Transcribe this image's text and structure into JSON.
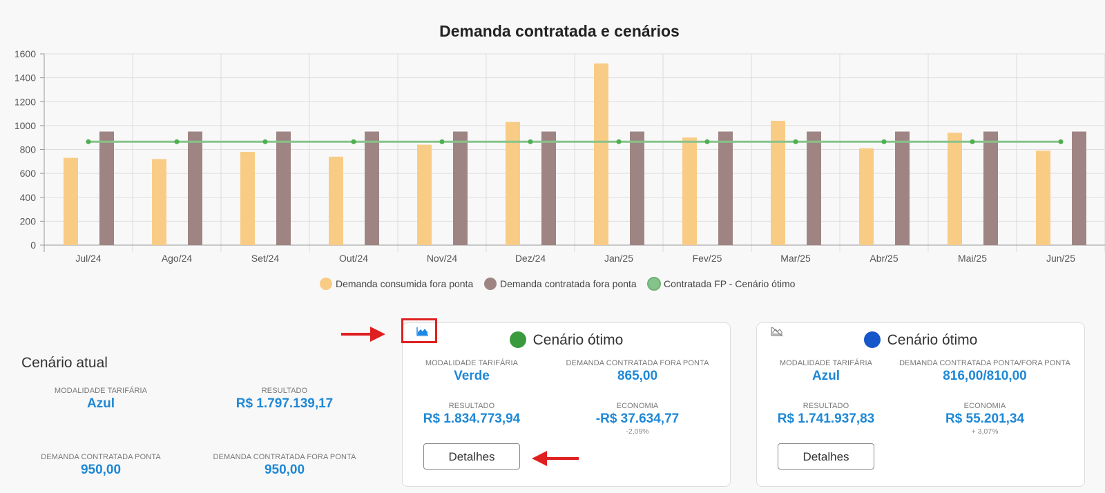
{
  "chart_data": {
    "type": "bar",
    "title": "Demanda contratada e cenários",
    "categories": [
      "Jul/24",
      "Ago/24",
      "Set/24",
      "Out/24",
      "Nov/24",
      "Dez/24",
      "Jan/25",
      "Fev/25",
      "Mar/25",
      "Abr/25",
      "Mai/25",
      "Jun/25"
    ],
    "ylim": [
      0,
      1600
    ],
    "yticks": [
      0,
      200,
      400,
      600,
      800,
      1000,
      1200,
      1400,
      1600
    ],
    "grid": true,
    "legend_position": "bottom-center",
    "series": [
      {
        "name": "Demanda consumida fora ponta",
        "kind": "bar",
        "color": "#f9cc86",
        "values": [
          730,
          720,
          780,
          740,
          840,
          1030,
          1520,
          900,
          1040,
          810,
          940,
          790
        ]
      },
      {
        "name": "Demanda contratada fora ponta",
        "kind": "bar",
        "color": "#9e8583",
        "values": [
          950,
          950,
          950,
          950,
          950,
          950,
          950,
          950,
          950,
          950,
          950,
          950
        ]
      },
      {
        "name": "Contratada FP - Cenário ótimo",
        "kind": "line",
        "color": "#86c38a",
        "values": [
          865,
          865,
          865,
          865,
          865,
          865,
          865,
          865,
          865,
          865,
          865,
          865
        ]
      }
    ]
  },
  "current": {
    "title": "Cenário atual",
    "modalidade_label": "MODALIDADE TARIFÁRIA",
    "modalidade_value": "Azul",
    "resultado_label": "RESULTADO",
    "resultado_value": "R$ 1.797.139,17",
    "ponta_label": "DEMANDA CONTRATADA PONTA",
    "ponta_value": "950,00",
    "fora_ponta_label": "DEMANDA CONTRATADA FORA PONTA",
    "fora_ponta_value": "950,00"
  },
  "cards": [
    {
      "title": "Cenário ótimo",
      "dot_color": "#3a9a3e",
      "icon": "area-chart-icon",
      "icon_color": "#1e88e5",
      "modalidade_label": "MODALIDADE TARIFÁRIA",
      "modalidade_value": "Verde",
      "demanda_label": "DEMANDA CONTRATADA FORA PONTA",
      "demanda_value": "865,00",
      "resultado_label": "RESULTADO",
      "resultado_value": "R$ 1.834.773,94",
      "economia_label": "ECONOMIA",
      "economia_value": "-R$ 37.634,77",
      "economia_pct": "-2,09%",
      "button_label": "Detalhes"
    },
    {
      "title": "Cenário ótimo",
      "dot_color": "#1556c9",
      "icon": "chart-hidden-icon",
      "icon_color": "#888888",
      "modalidade_label": "MODALIDADE TARIFÁRIA",
      "modalidade_value": "Azul",
      "demanda_label": "DEMANDA CONTRATADA PONTA/FORA PONTA",
      "demanda_value": "816,00/810,00",
      "resultado_label": "RESULTADO",
      "resultado_value": "R$ 1.741.937,83",
      "economia_label": "ECONOMIA",
      "economia_value": "R$ 55.201,34",
      "economia_pct": "+ 3,07%",
      "button_label": "Detalhes"
    }
  ],
  "annotation_color": "#e02020"
}
